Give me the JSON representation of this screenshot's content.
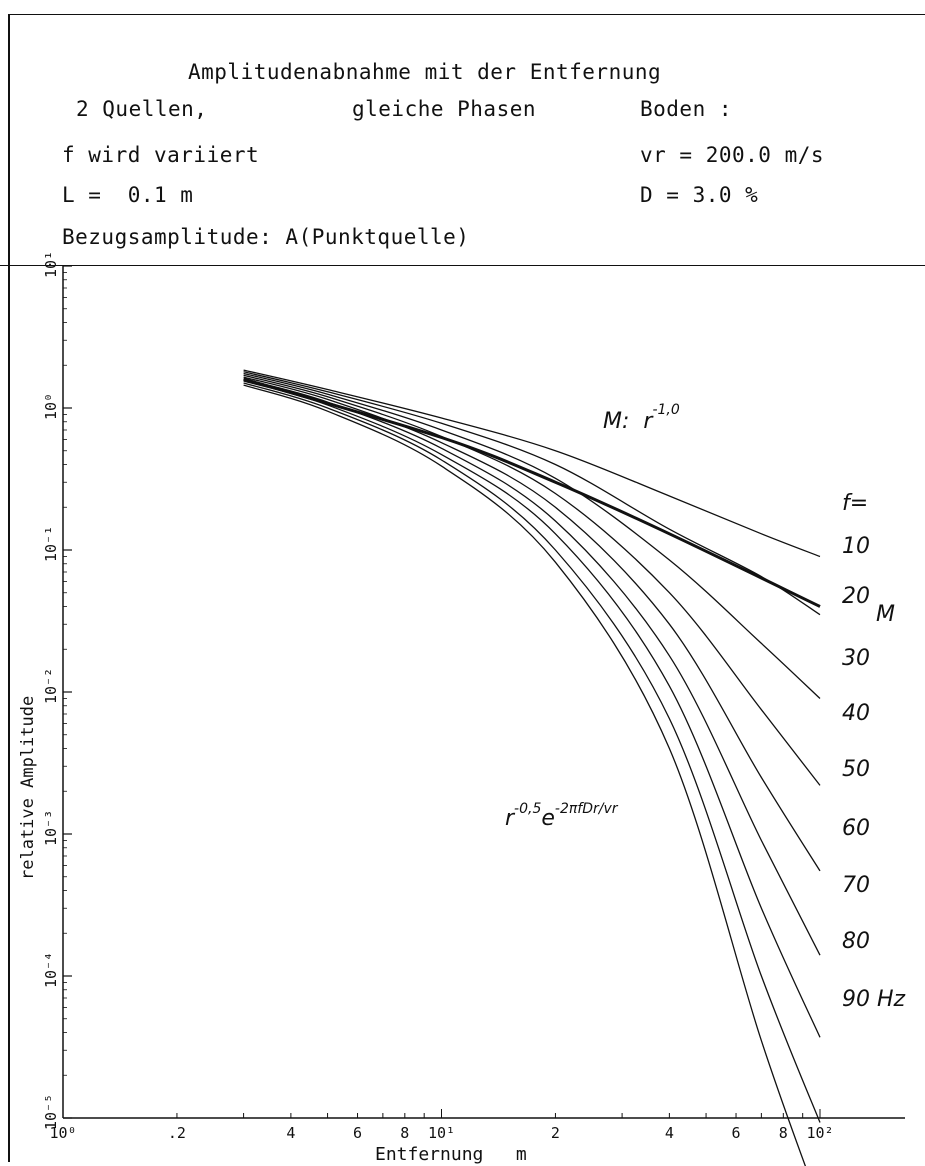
{
  "header": {
    "title": "Amplitudenabnahme mit der Entfernung",
    "line2_left": "2 Quellen,",
    "line2_mid": "gleiche Phasen",
    "line2_right": "Boden :",
    "line3_left": "f wird variiert",
    "line3_right": "vr = 200.0 m/s",
    "line4_left": "L =  0.1 m",
    "line4_right": "D = 3.0 %",
    "line5_left": "Bezugsamplitude: A(Punktquelle)"
  },
  "chart_data": {
    "type": "line",
    "xscale": "log",
    "yscale": "log",
    "xlim": [
      1,
      100
    ],
    "ylim": [
      1e-05,
      10
    ],
    "xlabel": "Entfernung   m",
    "ylabel": "relative Amplitude",
    "x_tick_labels": [
      {
        "x": 1,
        "label": "10⁰"
      },
      {
        "x": 2,
        "label": ".2"
      },
      {
        "x": 4,
        "label": "4"
      },
      {
        "x": 6,
        "label": "6"
      },
      {
        "x": 8,
        "label": "8"
      },
      {
        "x": 10,
        "label": "10¹"
      },
      {
        "x": 20,
        "label": "2"
      },
      {
        "x": 40,
        "label": "4"
      },
      {
        "x": 60,
        "label": "6"
      },
      {
        "x": 80,
        "label": "8"
      },
      {
        "x": 100,
        "label": "10²"
      }
    ],
    "y_tick_labels": [
      {
        "y": 10,
        "label": "10¹"
      },
      {
        "y": 1,
        "label": "10⁰"
      },
      {
        "y": 0.1,
        "label": "10⁻¹"
      },
      {
        "y": 0.01,
        "label": "10⁻²"
      },
      {
        "y": 0.001,
        "label": "10⁻³"
      },
      {
        "y": 0.0001,
        "label": "10⁻⁴"
      },
      {
        "y": 1e-05,
        "label": "10⁻⁵"
      }
    ],
    "reference_line": {
      "name": "M",
      "annotation": "M: r⁻¹ʷ⁰",
      "points": [
        [
          3,
          1.6
        ],
        [
          10,
          0.62
        ],
        [
          20,
          0.3
        ],
        [
          40,
          0.13
        ],
        [
          100,
          0.04
        ]
      ]
    },
    "series": [
      {
        "name": "10",
        "points": [
          [
            3,
            1.85
          ],
          [
            5,
            1.35
          ],
          [
            10,
            0.85
          ],
          [
            20,
            0.5
          ],
          [
            40,
            0.24
          ],
          [
            70,
            0.13
          ],
          [
            100,
            0.09
          ]
        ]
      },
      {
        "name": "20",
        "points": [
          [
            3,
            1.8
          ],
          [
            5,
            1.3
          ],
          [
            10,
            0.78
          ],
          [
            20,
            0.4
          ],
          [
            40,
            0.14
          ],
          [
            70,
            0.065
          ],
          [
            100,
            0.035
          ]
        ]
      },
      {
        "name": "30",
        "points": [
          [
            3,
            1.75
          ],
          [
            5,
            1.25
          ],
          [
            10,
            0.7
          ],
          [
            20,
            0.32
          ],
          [
            40,
            0.085
          ],
          [
            70,
            0.022
          ],
          [
            100,
            0.009
          ]
        ]
      },
      {
        "name": "40",
        "points": [
          [
            3,
            1.7
          ],
          [
            5,
            1.2
          ],
          [
            10,
            0.63
          ],
          [
            20,
            0.25
          ],
          [
            40,
            0.05
          ],
          [
            70,
            0.0075
          ],
          [
            100,
            0.0022
          ]
        ]
      },
      {
        "name": "50",
        "points": [
          [
            3,
            1.65
          ],
          [
            5,
            1.15
          ],
          [
            10,
            0.57
          ],
          [
            20,
            0.2
          ],
          [
            40,
            0.03
          ],
          [
            70,
            0.0025
          ],
          [
            100,
            0.00055
          ]
        ]
      },
      {
        "name": "60",
        "points": [
          [
            3,
            1.6
          ],
          [
            5,
            1.1
          ],
          [
            10,
            0.52
          ],
          [
            20,
            0.16
          ],
          [
            40,
            0.018
          ],
          [
            70,
            0.0009
          ],
          [
            100,
            0.00014
          ]
        ]
      },
      {
        "name": "70",
        "points": [
          [
            3,
            1.55
          ],
          [
            5,
            1.05
          ],
          [
            10,
            0.47
          ],
          [
            20,
            0.13
          ],
          [
            40,
            0.011
          ],
          [
            70,
            0.0003
          ],
          [
            100,
            3.7e-05
          ]
        ]
      },
      {
        "name": "80",
        "points": [
          [
            3,
            1.5
          ],
          [
            5,
            1.0
          ],
          [
            10,
            0.43
          ],
          [
            20,
            0.1
          ],
          [
            40,
            0.0065
          ],
          [
            70,
            0.0001
          ],
          [
            100,
            9.3e-06
          ]
        ]
      },
      {
        "name": "90",
        "points": [
          [
            3,
            1.45
          ],
          [
            5,
            0.95
          ],
          [
            10,
            0.39
          ],
          [
            20,
            0.082
          ],
          [
            40,
            0.004
          ],
          [
            70,
            3.5e-05
          ],
          [
            100,
            2.4e-06
          ]
        ]
      }
    ],
    "series_labels": [
      "f=",
      "10",
      "20",
      "30",
      "40",
      "50",
      "60",
      "70",
      "80",
      "90 Hz"
    ],
    "m_label": "M",
    "formula_base": "r",
    "formula_exp1": "-0,5",
    "formula_e": "e",
    "formula_exp2": "-2πfDr/vr",
    "m_anno_text": "M:  r",
    "m_anno_exp": "-1,0"
  }
}
